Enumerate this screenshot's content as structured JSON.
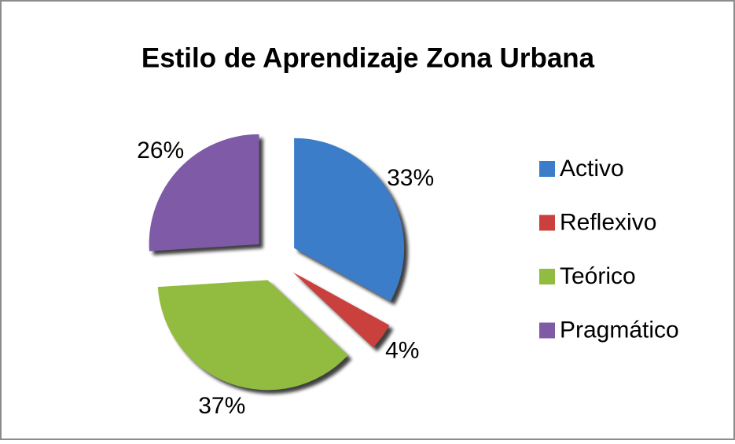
{
  "chart_data": {
    "type": "pie",
    "title": "Estilo de Aprendizaje Zona Urbana",
    "categories": [
      "Activo",
      "Reflexivo",
      "Teórico",
      "Pragmático"
    ],
    "values": [
      33,
      4,
      37,
      26
    ],
    "value_labels": [
      "33%",
      "4%",
      "37%",
      "26%"
    ],
    "colors": [
      "#3c7dc9",
      "#c9403c",
      "#92bc3f",
      "#7e5aa7"
    ],
    "legend": "right"
  }
}
